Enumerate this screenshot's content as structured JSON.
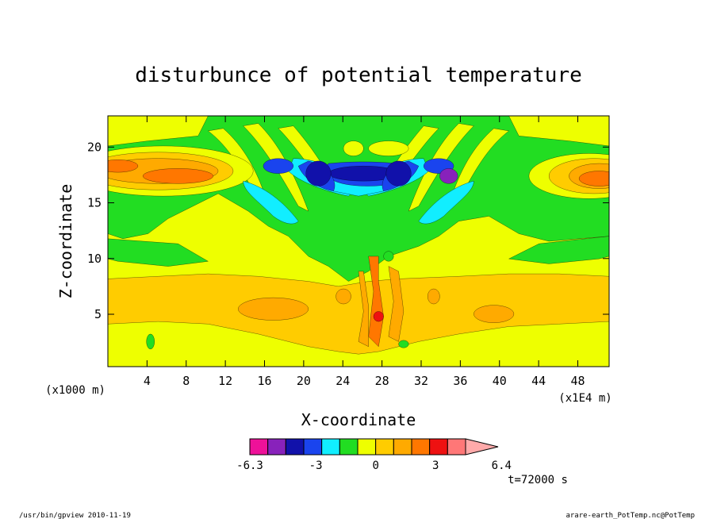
{
  "chart_data": {
    "type": "heatmap",
    "subtype": "filled-contour",
    "title": "disturbunce of potential temperature",
    "xlabel": "X-coordinate",
    "ylabel": "Z-coordinate",
    "x_unit_label": "(x1E4 m)",
    "y_unit_label": "(x1000 m)",
    "xlim": [
      0,
      51.2
    ],
    "ylim": [
      0.3,
      22.8
    ],
    "x_ticks": [
      4,
      8,
      12,
      16,
      20,
      24,
      28,
      32,
      36,
      40,
      44,
      48
    ],
    "y_ticks": [
      5,
      10,
      15,
      20
    ],
    "grid": false,
    "colorbar": {
      "orientation": "horizontal",
      "placement": "bottom",
      "levels": [
        -6.3,
        -5.4,
        -4.5,
        -3.6,
        -2.7,
        -1.8,
        -0.9,
        0,
        0.9,
        1.8,
        2.7,
        3.6,
        4.5,
        5.4,
        6.4
      ],
      "tick_labels": [
        "-6.3",
        "-3",
        "0",
        "3",
        "6.4"
      ],
      "tick_values": [
        -6.3,
        -3,
        0,
        3,
        6.4
      ],
      "colors": [
        "#ee1199",
        "#8822bb",
        "#1111aa",
        "#1a44ee",
        "#11eeff",
        "#22dd22",
        "#eeff00",
        "#ffcc00",
        "#ffaa00",
        "#ff7700",
        "#ee1111",
        "#ff7777",
        "#ffaaaa"
      ]
    },
    "time_label": "t=72000 s"
  },
  "footer": {
    "program": "/usr/bin/gpview   2010-11-19",
    "source": "arare-earth_PotTemp.nc@PotTemp"
  }
}
